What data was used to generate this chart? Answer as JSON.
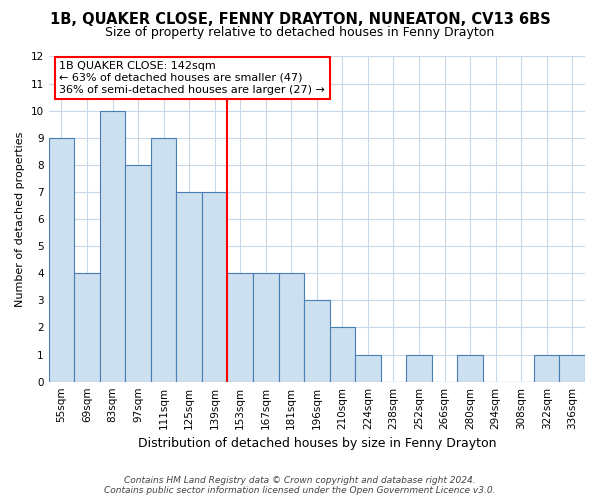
{
  "title": "1B, QUAKER CLOSE, FENNY DRAYTON, NUNEATON, CV13 6BS",
  "subtitle": "Size of property relative to detached houses in Fenny Drayton",
  "xlabel": "Distribution of detached houses by size in Fenny Drayton",
  "ylabel": "Number of detached properties",
  "bin_labels": [
    "55sqm",
    "69sqm",
    "83sqm",
    "97sqm",
    "111sqm",
    "125sqm",
    "139sqm",
    "153sqm",
    "167sqm",
    "181sqm",
    "196sqm",
    "210sqm",
    "224sqm",
    "238sqm",
    "252sqm",
    "266sqm",
    "280sqm",
    "294sqm",
    "308sqm",
    "322sqm",
    "336sqm"
  ],
  "values": [
    9,
    4,
    10,
    8,
    9,
    7,
    7,
    4,
    4,
    4,
    3,
    2,
    1,
    0,
    1,
    0,
    1,
    0,
    0,
    1,
    1
  ],
  "bar_color": "#cce0f0",
  "bar_edge_color": "#4a7fb5",
  "reference_line_x": 6.5,
  "annotation_text_line1": "1B QUAKER CLOSE: 142sqm",
  "annotation_text_line2": "← 63% of detached houses are smaller (47)",
  "annotation_text_line3": "36% of semi-detached houses are larger (27) →",
  "ylim": [
    0,
    12
  ],
  "yticks": [
    0,
    1,
    2,
    3,
    4,
    5,
    6,
    7,
    8,
    9,
    10,
    11,
    12
  ],
  "footer_line1": "Contains HM Land Registry data © Crown copyright and database right 2024.",
  "footer_line2": "Contains public sector information licensed under the Open Government Licence v3.0.",
  "bg_color": "#ffffff",
  "grid_color": "#c8d8e8",
  "title_fontsize": 10.5,
  "subtitle_fontsize": 9,
  "ylabel_fontsize": 8,
  "xlabel_fontsize": 9,
  "tick_fontsize": 7.5,
  "annotation_fontsize": 8,
  "footer_fontsize": 6.5
}
